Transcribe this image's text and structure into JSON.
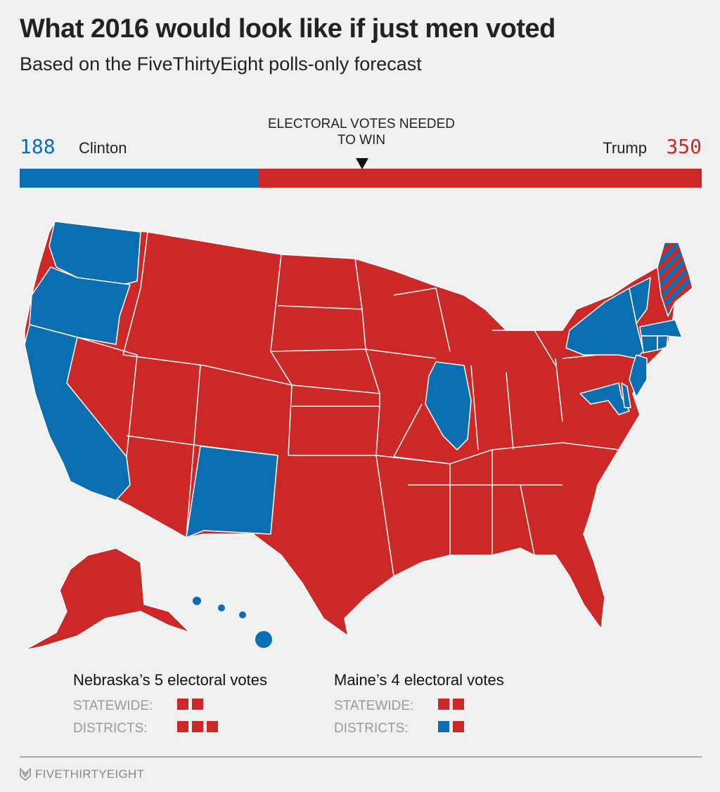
{
  "title": "What 2016 would look like if just men voted",
  "subtitle": "Based on the FiveThirtyEight polls-only forecast",
  "colors": {
    "clinton": "#0a6eb0",
    "trump": "#cc2828",
    "background": "#f0f0f0"
  },
  "tally": {
    "clinton_votes": "188",
    "clinton_label": "Clinton",
    "trump_votes": "350",
    "trump_label": "Trump",
    "needed_label": "ELECTORAL VOTES NEEDED TO WIN",
    "needed_value": 270,
    "total": 538
  },
  "map": {
    "clinton_states": [
      "WA",
      "OR",
      "CA",
      "NM",
      "IL",
      "NY",
      "VT",
      "MA",
      "CT",
      "RI",
      "NJ",
      "DE",
      "MD",
      "HI"
    ],
    "split_states": [
      "ME"
    ],
    "trump_states": [
      "all other states",
      "AK"
    ]
  },
  "legend": [
    {
      "heading": "Nebraska’s 5 electoral votes",
      "statewide_label": "STATEWIDE:",
      "statewide": [
        "trump",
        "trump"
      ],
      "districts_label": "DISTRICTS:",
      "districts": [
        "trump",
        "trump",
        "trump"
      ]
    },
    {
      "heading": "Maine’s 4 electoral votes",
      "statewide_label": "STATEWIDE:",
      "statewide": [
        "trump",
        "trump"
      ],
      "districts_label": "DISTRICTS:",
      "districts": [
        "clinton",
        "trump"
      ]
    }
  ],
  "footer": {
    "brand": "FIVETHIRTYEIGHT"
  }
}
